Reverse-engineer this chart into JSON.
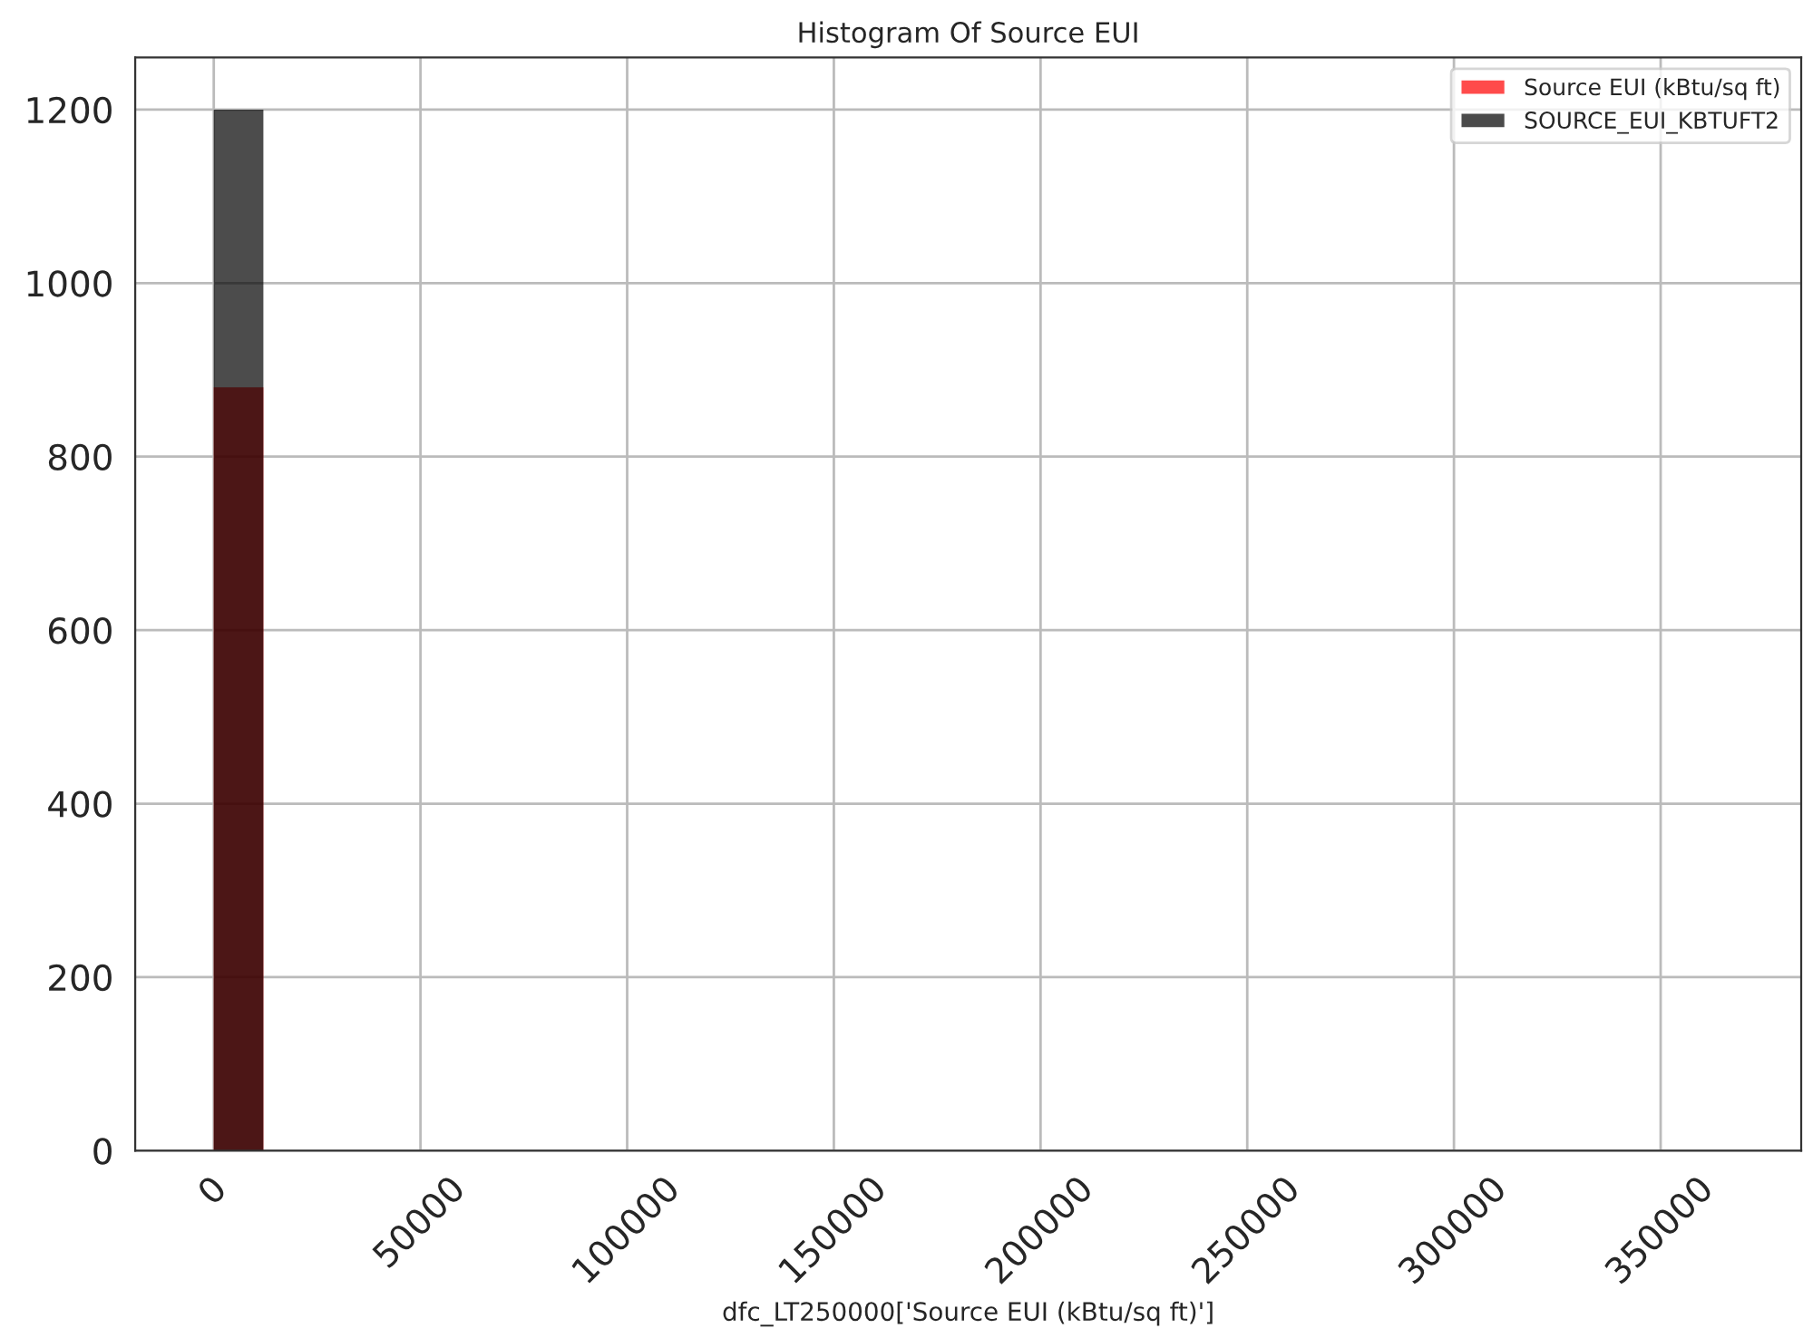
{
  "chart_data": {
    "type": "histogram",
    "title": "Histogram Of Source EUI",
    "xlabel": "dfc_LT250000['Source EUI (kBtu/sq ft)']",
    "bins": [
      0,
      12000
    ],
    "series": [
      {
        "name": "Source EUI (kBtu/sq ft)",
        "color": "#ff0000",
        "values": [
          880
        ]
      },
      {
        "name": "SOURCE_EUI_KBTUFT2",
        "color": "#000000",
        "values": [
          1200
        ]
      }
    ],
    "xlim": [
      -19000,
      384000
    ],
    "xticks": [
      0,
      50000,
      100000,
      150000,
      200000,
      250000,
      300000,
      350000
    ],
    "ylim": [
      0,
      1260
    ],
    "yticks": [
      0,
      200,
      400,
      600,
      800,
      1000,
      1200
    ],
    "grid": true,
    "legend": "top right"
  }
}
